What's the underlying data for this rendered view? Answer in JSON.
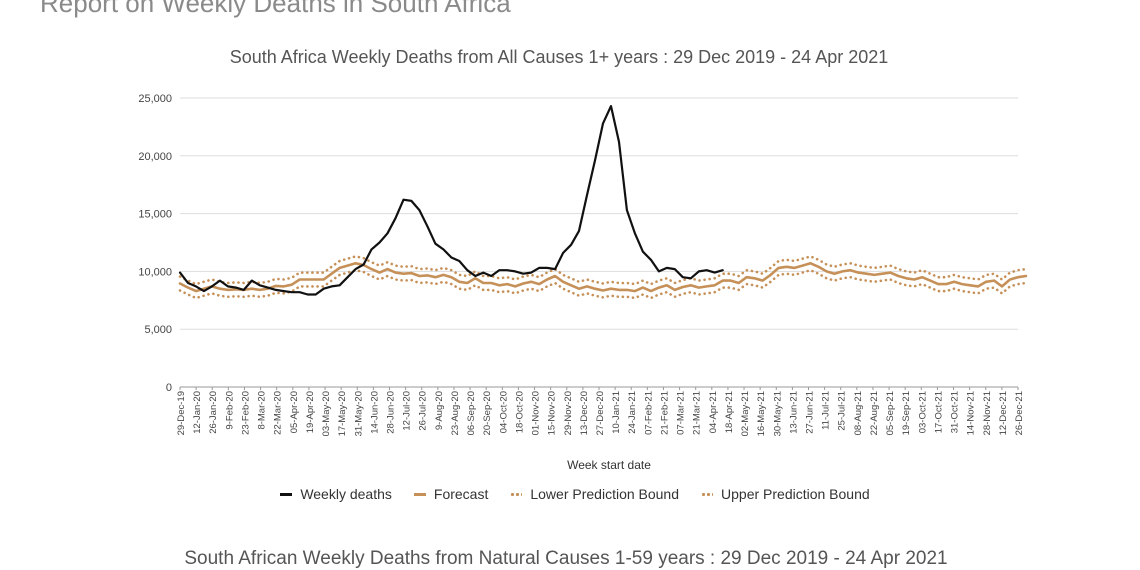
{
  "page_heading": "Report on Weekly Deaths in South Africa",
  "second_chart_title": "South African Weekly Deaths from Natural Causes 1-59 years : 29 Dec 2019 - 24 Apr 2021",
  "colors": {
    "weekly_deaths": "#111111",
    "forecast": "#c69059",
    "bounds": "#c69059",
    "grid": "#dddddd"
  },
  "chart_data": {
    "type": "line",
    "title": "South Africa Weekly Deaths from All Causes 1+ years : 29 Dec 2019 - 24 Apr 2021",
    "xlabel": "Week start date",
    "ylabel": "",
    "ylim": [
      0,
      25000
    ],
    "yticks": [
      "0",
      "5,000",
      "10,000",
      "15,000",
      "20,000",
      "25,000"
    ],
    "grid": true,
    "legend_position": "bottom",
    "x_tick_labels": [
      "29-Dec-19",
      "12-Jan-20",
      "26-Jan-20",
      "9-Feb-20",
      "23-Feb-20",
      "8-Mar-20",
      "22-Mar-20",
      "05-Apr-20",
      "19-Apr-20",
      "03-May-20",
      "17-May-20",
      "31-May-20",
      "14-Jun-20",
      "28-Jun-20",
      "12-Jul-20",
      "26-Jul-20",
      "9-Aug-20",
      "23-Aug-20",
      "06-Sep-20",
      "20-Sep-20",
      "04-Oct-20",
      "18-Oct-20",
      "01-Nov-20",
      "15-Nov-20",
      "29-Nov-20",
      "13-Dec-20",
      "27-Dec-20",
      "10-Jan-21",
      "24-Jan-21",
      "07-Feb-21",
      "21-Feb-21",
      "07-Mar-21",
      "21-Mar-21",
      "04-Apr-21",
      "18-Apr-21",
      "02-May-21",
      "16-May-21",
      "30-May-21",
      "13-Jun-21",
      "27-Jun-21",
      "11-Jul-21",
      "25-Jul-21",
      "08-Aug-21",
      "22-Aug-21",
      "05-Sep-21",
      "19-Sep-21",
      "03-Oct-21",
      "17-Oct-21",
      "31-Oct-21",
      "14-Nov-21",
      "28-Nov-21",
      "12-Dec-21",
      "26-Dec-21"
    ],
    "series": [
      {
        "name": "Weekly deaths",
        "style": "solid",
        "values": [
          9900,
          9000,
          8700,
          8300,
          8700,
          9200,
          8700,
          8600,
          8400,
          9200,
          8800,
          8600,
          8400,
          8300,
          8200,
          8200,
          8000,
          8000,
          8500,
          8700,
          8800,
          9500,
          10200,
          10600,
          11900,
          12500,
          13300,
          14600,
          16200,
          16100,
          15300,
          13900,
          12400,
          11900,
          11200,
          10900,
          10100,
          9600,
          9900,
          9600,
          10100,
          10100,
          10000,
          9800,
          9900,
          10300,
          10300,
          10200,
          11600,
          12300,
          13500,
          16600,
          19600,
          22800,
          24300,
          21200,
          15300,
          13300,
          11700,
          11000,
          10000,
          10300,
          10200,
          9500,
          9400,
          10000,
          10100,
          9900,
          10100
        ],
        "offset": 0
      },
      {
        "name": "Forecast",
        "style": "solid",
        "values": [
          8950,
          8600,
          8300,
          8500,
          8700,
          8500,
          8400,
          8450,
          8400,
          8500,
          8400,
          8500,
          8750,
          8700,
          8850,
          9300,
          9300,
          9300,
          9300,
          9800,
          10300,
          10500,
          10700,
          10550,
          10200,
          9900,
          10200,
          9900,
          9800,
          9850,
          9600,
          9650,
          9500,
          9700,
          9500,
          9100,
          9000,
          9400,
          9000,
          9000,
          8800,
          8900,
          8700,
          8950,
          9100,
          8900,
          9300,
          9600,
          9100,
          8800,
          8500,
          8700,
          8500,
          8350,
          8500,
          8400,
          8400,
          8300,
          8600,
          8300,
          8600,
          8800,
          8400,
          8650,
          8800,
          8600,
          8700,
          8800,
          9200,
          9200,
          9000,
          9500,
          9400,
          9200,
          9700,
          10300,
          10400,
          10300,
          10500,
          10700,
          10400,
          10000,
          9800,
          10000,
          10100,
          9900,
          9800,
          9700,
          9800,
          9900,
          9600,
          9400,
          9300,
          9500,
          9200,
          8900,
          8900,
          9100,
          8900,
          8800,
          8700,
          9100,
          9200,
          8700,
          9300,
          9500,
          9600
        ],
        "offset": 0
      },
      {
        "name": "Lower Prediction Bound",
        "style": "dotted",
        "values": [
          8350,
          8000,
          7700,
          7900,
          8100,
          7900,
          7800,
          7850,
          7800,
          7900,
          7800,
          7900,
          8150,
          8100,
          8250,
          8700,
          8700,
          8700,
          8700,
          9200,
          9700,
          9900,
          10100,
          9950,
          9600,
          9300,
          9600,
          9300,
          9200,
          9250,
          9000,
          9050,
          8900,
          9100,
          8900,
          8500,
          8400,
          8800,
          8400,
          8400,
          8200,
          8300,
          8100,
          8350,
          8500,
          8300,
          8700,
          9000,
          8500,
          8200,
          7900,
          8100,
          7900,
          7750,
          7900,
          7800,
          7800,
          7700,
          8000,
          7700,
          8000,
          8200,
          7800,
          8050,
          8200,
          8000,
          8100,
          8200,
          8600,
          8600,
          8400,
          8900,
          8800,
          8600,
          9100,
          9700,
          9800,
          9700,
          9900,
          10100,
          9800,
          9400,
          9200,
          9400,
          9500,
          9300,
          9200,
          9100,
          9200,
          9300,
          9000,
          8800,
          8700,
          8900,
          8600,
          8300,
          8300,
          8500,
          8300,
          8200,
          8100,
          8500,
          8600,
          8100,
          8700,
          8900,
          9000
        ],
        "offset": 0
      },
      {
        "name": "Upper Prediction Bound",
        "style": "dotted",
        "values": [
          9550,
          9200,
          8900,
          9100,
          9300,
          9100,
          9000,
          9050,
          9000,
          9100,
          9000,
          9100,
          9350,
          9300,
          9450,
          9900,
          9900,
          9900,
          9900,
          10400,
          10900,
          11100,
          11300,
          11150,
          10800,
          10500,
          10800,
          10500,
          10400,
          10450,
          10200,
          10250,
          10100,
          10300,
          10100,
          9700,
          9600,
          10000,
          9600,
          9600,
          9400,
          9500,
          9300,
          9550,
          9700,
          9500,
          9900,
          10200,
          9700,
          9400,
          9100,
          9300,
          9100,
          8950,
          9100,
          9000,
          9000,
          8900,
          9200,
          8900,
          9200,
          9400,
          9000,
          9250,
          9400,
          9200,
          9300,
          9400,
          9800,
          9800,
          9600,
          10100,
          10000,
          9800,
          10300,
          10900,
          11000,
          10900,
          11100,
          11300,
          11000,
          10600,
          10400,
          10600,
          10700,
          10500,
          10400,
          10300,
          10400,
          10500,
          10200,
          10000,
          9900,
          10100,
          9800,
          9500,
          9500,
          9700,
          9500,
          9400,
          9300,
          9700,
          9800,
          9300,
          9900,
          10100,
          10200
        ],
        "offset": 0
      }
    ]
  }
}
